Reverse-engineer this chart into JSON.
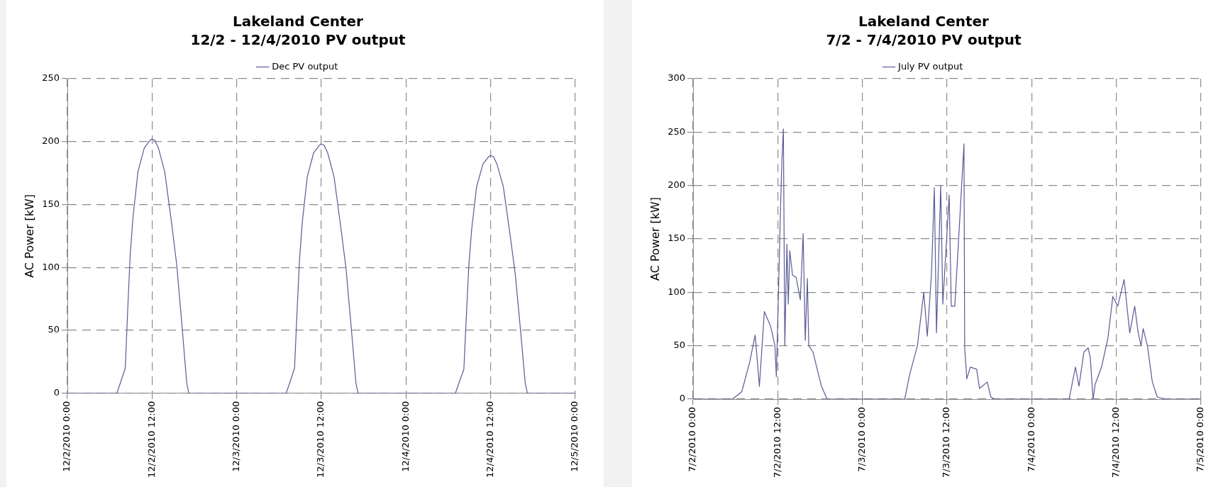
{
  "chart_data": [
    {
      "type": "line",
      "title": "Lakeland Center",
      "subtitle": "12/2 - 12/4/2010 PV output",
      "ylabel": "AC Power [kW]",
      "xlim": [
        "2010-12-02T00:00",
        "2010-12-05T00:00"
      ],
      "ylim": [
        0,
        250
      ],
      "yticks": [
        0,
        50,
        100,
        150,
        200,
        250
      ],
      "xticks": [
        {
          "value": "2010-12-02T00:00",
          "label": "12/2/2010 0:00"
        },
        {
          "value": "2010-12-02T12:00",
          "label": "12/2/2010 12:00"
        },
        {
          "value": "2010-12-03T00:00",
          "label": "12/3/2010 0:00"
        },
        {
          "value": "2010-12-03T12:00",
          "label": "12/3/2010 12:00"
        },
        {
          "value": "2010-12-04T00:00",
          "label": "12/4/2010 0:00"
        },
        {
          "value": "2010-12-04T12:00",
          "label": "12/4/2010 12:00"
        },
        {
          "value": "2010-12-05T00:00",
          "label": "12/5/2010 0:00"
        }
      ],
      "grid": true,
      "legend": "top",
      "marker": "none",
      "line_style": "solid",
      "series": [
        {
          "name": "Dec PV output",
          "color": "#5a5a96",
          "x": [
            "2010-12-02T00:00",
            "2010-12-02T07:00",
            "2010-12-02T07:30",
            "2010-12-02T08:12",
            "2010-12-02T08:30",
            "2010-12-02T08:54",
            "2010-12-02T09:18",
            "2010-12-02T10:00",
            "2010-12-02T10:54",
            "2010-12-02T11:42",
            "2010-12-02T12:00",
            "2010-12-02T12:24",
            "2010-12-02T12:54",
            "2010-12-02T13:48",
            "2010-12-02T14:48",
            "2010-12-02T15:30",
            "2010-12-02T16:18",
            "2010-12-02T16:54",
            "2010-12-02T17:12",
            "2010-12-03T07:00",
            "2010-12-03T07:30",
            "2010-12-03T08:12",
            "2010-12-03T08:30",
            "2010-12-03T08:54",
            "2010-12-03T09:18",
            "2010-12-03T10:00",
            "2010-12-03T10:54",
            "2010-12-03T11:42",
            "2010-12-03T12:00",
            "2010-12-03T12:24",
            "2010-12-03T12:54",
            "2010-12-03T13:48",
            "2010-12-03T14:48",
            "2010-12-03T15:30",
            "2010-12-03T16:18",
            "2010-12-03T16:54",
            "2010-12-03T17:12",
            "2010-12-04T07:00",
            "2010-12-04T07:30",
            "2010-12-04T08:12",
            "2010-12-04T08:30",
            "2010-12-04T08:54",
            "2010-12-04T09:18",
            "2010-12-04T10:00",
            "2010-12-04T10:54",
            "2010-12-04T11:42",
            "2010-12-04T12:00",
            "2010-12-04T12:24",
            "2010-12-04T12:54",
            "2010-12-04T13:48",
            "2010-12-04T14:48",
            "2010-12-04T15:30",
            "2010-12-04T16:18",
            "2010-12-04T16:54",
            "2010-12-04T17:12",
            "2010-12-05T00:00"
          ],
          "values": [
            0,
            0,
            8,
            20,
            60,
            110,
            140,
            176,
            195,
            201,
            202,
            201,
            195,
            176,
            134,
            102,
            50,
            9,
            0,
            0,
            8,
            20,
            58,
            106,
            136,
            172,
            191,
            197,
            198,
            197,
            191,
            172,
            130,
            99,
            48,
            8,
            0,
            0,
            8,
            19,
            55,
            101,
            130,
            164,
            182,
            188,
            189,
            188,
            182,
            164,
            124,
            94,
            46,
            8,
            0,
            0
          ]
        }
      ]
    },
    {
      "type": "line",
      "title": "Lakeland Center",
      "subtitle": "7/2 - 7/4/2010 PV output",
      "ylabel": "AC Power [kW]",
      "xlim": [
        "2010-07-02T00:00",
        "2010-07-05T00:00"
      ],
      "ylim": [
        0,
        300
      ],
      "yticks": [
        0,
        50,
        100,
        150,
        200,
        250,
        300
      ],
      "xticks": [
        {
          "value": "2010-07-02T00:00",
          "label": "7/2/2010 0:00"
        },
        {
          "value": "2010-07-02T12:00",
          "label": "7/2/2010 12:00"
        },
        {
          "value": "2010-07-03T00:00",
          "label": "7/3/2010 0:00"
        },
        {
          "value": "2010-07-03T12:00",
          "label": "7/3/2010 12:00"
        },
        {
          "value": "2010-07-04T00:00",
          "label": "7/4/2010 0:00"
        },
        {
          "value": "2010-07-04T12:00",
          "label": "7/4/2010 12:00"
        },
        {
          "value": "2010-07-05T00:00",
          "label": "7/5/2010 0:00"
        }
      ],
      "grid": true,
      "legend": "top",
      "marker": "none",
      "line_style": "solid",
      "series": [
        {
          "name": "July PV output",
          "color": "#5a5a96",
          "x": [
            "2010-07-02T00:00",
            "2010-07-02T05:36",
            "2010-07-02T06:54",
            "2010-07-02T08:00",
            "2010-07-02T08:48",
            "2010-07-02T09:24",
            "2010-07-02T10:06",
            "2010-07-02T11:00",
            "2010-07-02T11:36",
            "2010-07-02T11:48",
            "2010-07-02T12:06",
            "2010-07-02T12:24",
            "2010-07-02T12:36",
            "2010-07-02T12:48",
            "2010-07-02T13:00",
            "2010-07-02T13:18",
            "2010-07-02T13:30",
            "2010-07-02T13:42",
            "2010-07-02T14:06",
            "2010-07-02T14:36",
            "2010-07-02T15:12",
            "2010-07-02T15:36",
            "2010-07-02T15:54",
            "2010-07-02T16:12",
            "2010-07-02T16:24",
            "2010-07-02T17:00",
            "2010-07-02T17:42",
            "2010-07-02T18:12",
            "2010-07-02T19:00",
            "2010-07-03T06:00",
            "2010-07-03T06:42",
            "2010-07-03T07:48",
            "2010-07-03T08:42",
            "2010-07-03T09:12",
            "2010-07-03T09:48",
            "2010-07-03T10:12",
            "2010-07-03T10:30",
            "2010-07-03T11:06",
            "2010-07-03T11:24",
            "2010-07-03T12:18",
            "2010-07-03T12:36",
            "2010-07-03T13:06",
            "2010-07-03T13:54",
            "2010-07-03T14:24",
            "2010-07-03T14:30",
            "2010-07-03T14:48",
            "2010-07-03T15:18",
            "2010-07-03T16:12",
            "2010-07-03T16:36",
            "2010-07-03T17:42",
            "2010-07-03T18:12",
            "2010-07-03T18:42",
            "2010-07-04T05:18",
            "2010-07-04T06:12",
            "2010-07-04T06:42",
            "2010-07-04T07:24",
            "2010-07-04T08:00",
            "2010-07-04T08:18",
            "2010-07-04T08:42",
            "2010-07-04T09:00",
            "2010-07-04T09:54",
            "2010-07-04T10:48",
            "2010-07-04T11:30",
            "2010-07-04T12:12",
            "2010-07-04T13:06",
            "2010-07-04T13:54",
            "2010-07-04T14:36",
            "2010-07-04T15:06",
            "2010-07-04T15:30",
            "2010-07-04T15:48",
            "2010-07-04T16:24",
            "2010-07-04T17:06",
            "2010-07-04T17:48",
            "2010-07-04T18:54",
            "2010-07-05T00:00"
          ],
          "values": [
            0,
            0,
            7,
            34,
            60,
            12,
            82,
            68,
            50,
            21,
            100,
            180,
            225,
            253,
            50,
            145,
            89,
            139,
            116,
            114,
            93,
            155,
            55,
            113,
            50,
            44,
            25,
            12,
            0,
            0,
            23,
            50,
            100,
            59,
            118,
            198,
            62,
            200,
            89,
            191,
            87,
            87,
            180,
            239,
            48,
            19,
            30,
            28,
            10,
            16,
            2,
            0,
            0,
            30,
            12,
            44,
            48,
            39,
            0,
            14,
            30,
            57,
            96,
            87,
            112,
            62,
            87,
            62,
            50,
            66,
            50,
            16,
            2,
            0,
            0
          ]
        }
      ]
    }
  ]
}
